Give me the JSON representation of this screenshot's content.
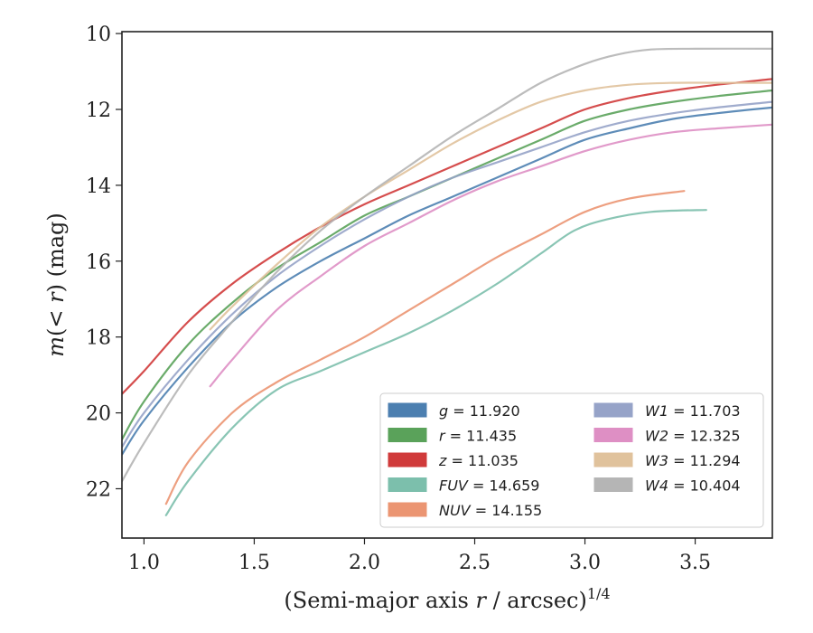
{
  "chart_data": {
    "type": "line",
    "xlabel": "(Semi-major axis r / arcsec)",
    "xlabel_parts": {
      "pre": "(Semi-major axis ",
      "var": "r",
      "post": " / arcsec)",
      "sup": "1/4"
    },
    "ylabel_parts": {
      "m": "m",
      "open": "(",
      "lt": "< ",
      "r": "r",
      "close": ")",
      "unit": " (mag)"
    },
    "xlim": [
      0.9,
      3.85
    ],
    "ylim": [
      23.3,
      9.95
    ],
    "y_inverted": true,
    "xticks": [
      1.0,
      1.5,
      2.0,
      2.5,
      3.0,
      3.5
    ],
    "xtick_labels": [
      "1.0",
      "1.5",
      "2.0",
      "2.5",
      "3.0",
      "3.5"
    ],
    "yticks": [
      10,
      12,
      14,
      16,
      18,
      20,
      22
    ],
    "ytick_labels": [
      "10",
      "12",
      "14",
      "16",
      "18",
      "20",
      "22"
    ],
    "grid": false,
    "legend_position": "lower-right",
    "series": [
      {
        "name": "g",
        "value": "11.920",
        "color": "#4c7fb0",
        "x": [
          0.9,
          1.0,
          1.2,
          1.4,
          1.6,
          1.8,
          2.0,
          2.2,
          2.4,
          2.6,
          2.8,
          3.0,
          3.2,
          3.4,
          3.6,
          3.85
        ],
        "y": [
          21.1,
          20.2,
          18.8,
          17.6,
          16.7,
          16.0,
          15.4,
          14.8,
          14.3,
          13.8,
          13.3,
          12.8,
          12.5,
          12.25,
          12.1,
          11.95
        ]
      },
      {
        "name": "r",
        "value": "11.435",
        "color": "#5aa25a",
        "x": [
          0.9,
          1.0,
          1.2,
          1.4,
          1.6,
          1.8,
          2.0,
          2.2,
          2.4,
          2.6,
          2.8,
          3.0,
          3.2,
          3.4,
          3.6,
          3.85
        ],
        "y": [
          20.7,
          19.7,
          18.2,
          17.1,
          16.2,
          15.5,
          14.8,
          14.3,
          13.8,
          13.3,
          12.8,
          12.3,
          12.0,
          11.8,
          11.65,
          11.5
        ]
      },
      {
        "name": "z",
        "value": "11.035",
        "color": "#d03a3a",
        "x": [
          0.9,
          1.0,
          1.2,
          1.4,
          1.6,
          1.8,
          2.0,
          2.2,
          2.4,
          2.6,
          2.8,
          3.0,
          3.2,
          3.4,
          3.6,
          3.85
        ],
        "y": [
          19.5,
          18.9,
          17.6,
          16.6,
          15.8,
          15.1,
          14.5,
          14.0,
          13.5,
          13.0,
          12.5,
          12.0,
          11.7,
          11.5,
          11.35,
          11.2
        ]
      },
      {
        "name": "FUV",
        "value": "14.659",
        "color": "#7cbfac",
        "x": [
          1.1,
          1.2,
          1.4,
          1.6,
          1.8,
          2.0,
          2.2,
          2.4,
          2.6,
          2.8,
          2.95,
          3.1,
          3.3,
          3.55
        ],
        "y": [
          22.7,
          21.8,
          20.4,
          19.4,
          18.9,
          18.4,
          17.9,
          17.3,
          16.6,
          15.8,
          15.2,
          14.9,
          14.7,
          14.65
        ]
      },
      {
        "name": "NUV",
        "value": "14.155",
        "color": "#eb9572",
        "x": [
          1.1,
          1.2,
          1.4,
          1.6,
          1.8,
          2.0,
          2.2,
          2.4,
          2.6,
          2.8,
          3.0,
          3.2,
          3.45
        ],
        "y": [
          22.4,
          21.3,
          20.0,
          19.2,
          18.6,
          18.0,
          17.3,
          16.6,
          15.9,
          15.3,
          14.7,
          14.35,
          14.15
        ]
      },
      {
        "name": "W1",
        "value": "11.703",
        "color": "#96a3c8",
        "x": [
          0.9,
          1.0,
          1.2,
          1.4,
          1.6,
          1.8,
          2.0,
          2.2,
          2.4,
          2.6,
          2.8,
          3.0,
          3.2,
          3.4,
          3.6,
          3.85
        ],
        "y": [
          20.9,
          20.0,
          18.6,
          17.4,
          16.4,
          15.6,
          14.9,
          14.3,
          13.8,
          13.4,
          13.0,
          12.6,
          12.3,
          12.1,
          11.95,
          11.8
        ]
      },
      {
        "name": "W2",
        "value": "12.325",
        "color": "#de8fc4",
        "x": [
          1.3,
          1.4,
          1.6,
          1.8,
          2.0,
          2.2,
          2.4,
          2.6,
          2.8,
          3.0,
          3.2,
          3.4,
          3.6,
          3.85
        ],
        "y": [
          19.3,
          18.6,
          17.3,
          16.4,
          15.6,
          15.0,
          14.4,
          13.9,
          13.5,
          13.1,
          12.8,
          12.6,
          12.5,
          12.4
        ]
      },
      {
        "name": "W3",
        "value": "11.294",
        "color": "#e0c29c",
        "x": [
          1.3,
          1.4,
          1.6,
          1.8,
          2.0,
          2.2,
          2.4,
          2.6,
          2.8,
          3.0,
          3.2,
          3.4,
          3.6,
          3.85
        ],
        "y": [
          17.8,
          17.2,
          16.1,
          15.1,
          14.3,
          13.6,
          12.9,
          12.3,
          11.8,
          11.5,
          11.35,
          11.3,
          11.3,
          11.3
        ]
      },
      {
        "name": "W4",
        "value": "10.404",
        "color": "#b5b5b5",
        "x": [
          0.9,
          1.0,
          1.2,
          1.4,
          1.6,
          1.8,
          2.0,
          2.2,
          2.4,
          2.6,
          2.8,
          3.0,
          3.15,
          3.3,
          3.5,
          3.85
        ],
        "y": [
          21.8,
          20.8,
          19.0,
          17.6,
          16.3,
          15.2,
          14.3,
          13.5,
          12.7,
          12.0,
          11.3,
          10.8,
          10.55,
          10.42,
          10.4,
          10.4
        ]
      }
    ]
  }
}
